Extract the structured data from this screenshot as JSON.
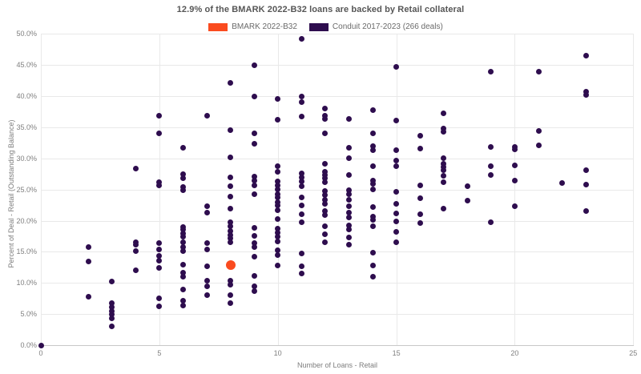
{
  "legend": {
    "items": [
      {
        "label": "BMARK 2022-B32",
        "color": "#fa4b1f"
      },
      {
        "label": "Conduit 2017-2023 (266 deals)",
        "color": "#2e0d4e"
      }
    ]
  },
  "chart_data": {
    "type": "scatter",
    "title": "12.9% of the BMARK 2022-B32 loans are backed by Retail collateral",
    "xlabel": "Number of Loans - Retail",
    "ylabel": "Percent of Deal - Retail (Outstanding Balance)",
    "xlim": [
      0,
      25
    ],
    "ylim": [
      0,
      50
    ],
    "x_ticks": [
      0,
      5,
      10,
      15,
      20,
      25
    ],
    "y_ticks": [
      0,
      5,
      10,
      15,
      20,
      25,
      30,
      35,
      40,
      45,
      50
    ],
    "y_tick_labels": [
      "0.0%",
      "5.0%",
      "10.0%",
      "15.0%",
      "20.0%",
      "25.0%",
      "30.0%",
      "35.0%",
      "40.0%",
      "45.0%",
      "50.0%"
    ],
    "grid": true,
    "legend_position": "top-center",
    "colors": {
      "grid": "#e9e9e9",
      "axis": "#c8c8c8",
      "title_text": "#565656",
      "tick_text": "#7f7f7f"
    },
    "series": [
      {
        "name": "Conduit 2017-2023 (266 deals)",
        "color": "#2e0d4e",
        "marker_size": 7,
        "points": [
          [
            0,
            0
          ],
          [
            2,
            15.8
          ],
          [
            2,
            13.5
          ],
          [
            2,
            7.8
          ],
          [
            3,
            10.2
          ],
          [
            3,
            6.7
          ],
          [
            3,
            6.1
          ],
          [
            3,
            5.5
          ],
          [
            3,
            4.9
          ],
          [
            3,
            4.3
          ],
          [
            3,
            3
          ],
          [
            4,
            28.4
          ],
          [
            4,
            16.6
          ],
          [
            4,
            16.1
          ],
          [
            4,
            15.1
          ],
          [
            4,
            12
          ],
          [
            5,
            36.9
          ],
          [
            5,
            34
          ],
          [
            5,
            26.2
          ],
          [
            5,
            25.7
          ],
          [
            5,
            16.4
          ],
          [
            5,
            15.4
          ],
          [
            5,
            14.4
          ],
          [
            5,
            13.6
          ],
          [
            5,
            12.4
          ],
          [
            5,
            7.5
          ],
          [
            5,
            6.2
          ],
          [
            6,
            31.7
          ],
          [
            6,
            27.5
          ],
          [
            6,
            26.8
          ],
          [
            6,
            25.4
          ],
          [
            6,
            24.9
          ],
          [
            6,
            19
          ],
          [
            6,
            18.6
          ],
          [
            6,
            17.9
          ],
          [
            6,
            17.4
          ],
          [
            6,
            16.5
          ],
          [
            6,
            15.8
          ],
          [
            6,
            15.1
          ],
          [
            6,
            13
          ],
          [
            6,
            11.6
          ],
          [
            6,
            11
          ],
          [
            6,
            9
          ],
          [
            6,
            7.1
          ],
          [
            6,
            6.4
          ],
          [
            7,
            36.9
          ],
          [
            7,
            22.3
          ],
          [
            7,
            21.3
          ],
          [
            7,
            16.4
          ],
          [
            7,
            15.4
          ],
          [
            7,
            12.7
          ],
          [
            7,
            10.3
          ],
          [
            7,
            9.5
          ],
          [
            7,
            8
          ],
          [
            8,
            42.2
          ],
          [
            8,
            34.6
          ],
          [
            8,
            30.2
          ],
          [
            8,
            27
          ],
          [
            8,
            25.6
          ],
          [
            8,
            23.9
          ],
          [
            8,
            21.9
          ],
          [
            8,
            19.7
          ],
          [
            8,
            19.1
          ],
          [
            8,
            18.4
          ],
          [
            8,
            17.7
          ],
          [
            8,
            17.2
          ],
          [
            8,
            16.5
          ],
          [
            8,
            10.3
          ],
          [
            8,
            9.7
          ],
          [
            8,
            8
          ],
          [
            8,
            6.7
          ],
          [
            9,
            45
          ],
          [
            9,
            39.9
          ],
          [
            9,
            34.1
          ],
          [
            9,
            32.4
          ],
          [
            9,
            27.1
          ],
          [
            9,
            26.4
          ],
          [
            9,
            25.7
          ],
          [
            9,
            24.2
          ],
          [
            9,
            18.9
          ],
          [
            9,
            17.6
          ],
          [
            9,
            16.4
          ],
          [
            9,
            15.8
          ],
          [
            9,
            14.2
          ],
          [
            9,
            11.2
          ],
          [
            9,
            9.4
          ],
          [
            9,
            8.7
          ],
          [
            10,
            39.6
          ],
          [
            10,
            36.2
          ],
          [
            10,
            28.7
          ],
          [
            10,
            27.8
          ],
          [
            10,
            26.3
          ],
          [
            10,
            25.7
          ],
          [
            10,
            25
          ],
          [
            10,
            24.3
          ],
          [
            10,
            23.7
          ],
          [
            10,
            23
          ],
          [
            10,
            22.4
          ],
          [
            10,
            21.7
          ],
          [
            10,
            20.3
          ],
          [
            10,
            18.7
          ],
          [
            10,
            18.1
          ],
          [
            10,
            17.4
          ],
          [
            10,
            16.7
          ],
          [
            10,
            15.2
          ],
          [
            10,
            14.5
          ],
          [
            10,
            12.8
          ],
          [
            11,
            49.2
          ],
          [
            11,
            39.9
          ],
          [
            11,
            39.1
          ],
          [
            11,
            36.8
          ],
          [
            11,
            27.6
          ],
          [
            11,
            27
          ],
          [
            11,
            26.3
          ],
          [
            11,
            25.6
          ],
          [
            11,
            23.7
          ],
          [
            11,
            22.4
          ],
          [
            11,
            21.1
          ],
          [
            11,
            19.8
          ],
          [
            11,
            14.7
          ],
          [
            11,
            12.7
          ],
          [
            11,
            11.5
          ],
          [
            12,
            38
          ],
          [
            12,
            36.9
          ],
          [
            12,
            36.4
          ],
          [
            12,
            34.1
          ],
          [
            12,
            29.2
          ],
          [
            12,
            27.9
          ],
          [
            12,
            27.3
          ],
          [
            12,
            26.8
          ],
          [
            12,
            26.2
          ],
          [
            12,
            24.8
          ],
          [
            12,
            24.1
          ],
          [
            12,
            23.4
          ],
          [
            12,
            22.7
          ],
          [
            12,
            21.6
          ],
          [
            12,
            20.9
          ],
          [
            12,
            19.1
          ],
          [
            12,
            17.8
          ],
          [
            12,
            16.5
          ],
          [
            13,
            36.4
          ],
          [
            13,
            31.7
          ],
          [
            13,
            30.1
          ],
          [
            13,
            27.4
          ],
          [
            13,
            24.9
          ],
          [
            13,
            24.2
          ],
          [
            13,
            23.3
          ],
          [
            13,
            22.3
          ],
          [
            13,
            21.3
          ],
          [
            13,
            20.5
          ],
          [
            13,
            19.3
          ],
          [
            13,
            18.6
          ],
          [
            13,
            17.3
          ],
          [
            13,
            16.1
          ],
          [
            14,
            37.8
          ],
          [
            14,
            34.1
          ],
          [
            14,
            32
          ],
          [
            14,
            31.4
          ],
          [
            14,
            28.7
          ],
          [
            14,
            26.5
          ],
          [
            14,
            25.9
          ],
          [
            14,
            25
          ],
          [
            14,
            22.2
          ],
          [
            14,
            20.7
          ],
          [
            14,
            20.1
          ],
          [
            14,
            19.1
          ],
          [
            14,
            14.9
          ],
          [
            14,
            12.8
          ],
          [
            14,
            11
          ],
          [
            15,
            44.7
          ],
          [
            15,
            36.1
          ],
          [
            15,
            31.3
          ],
          [
            15,
            29.6
          ],
          [
            15,
            28.8
          ],
          [
            15,
            24.6
          ],
          [
            15,
            22.7
          ],
          [
            15,
            21.2
          ],
          [
            15,
            19.9
          ],
          [
            15,
            18.2
          ],
          [
            15,
            16.6
          ],
          [
            16,
            33.6
          ],
          [
            16,
            31.6
          ],
          [
            16,
            25.7
          ],
          [
            16,
            23.6
          ],
          [
            16,
            21
          ],
          [
            16,
            19.6
          ],
          [
            17,
            37.3
          ],
          [
            17,
            34.8
          ],
          [
            17,
            34.3
          ],
          [
            17,
            30.1
          ],
          [
            17,
            29.1
          ],
          [
            17,
            28.6
          ],
          [
            17,
            28.1
          ],
          [
            17,
            27.2
          ],
          [
            17,
            26.2
          ],
          [
            17,
            22
          ],
          [
            18,
            25.5
          ],
          [
            18,
            23.2
          ],
          [
            19,
            43.9
          ],
          [
            19,
            31.9
          ],
          [
            19,
            28.7
          ],
          [
            19,
            27.4
          ],
          [
            19,
            19.8
          ],
          [
            20,
            31.9
          ],
          [
            20,
            31.5
          ],
          [
            20,
            28.9
          ],
          [
            20,
            26.5
          ],
          [
            20,
            22.3
          ],
          [
            21,
            44
          ],
          [
            21,
            34.4
          ],
          [
            21,
            32.1
          ],
          [
            22,
            26
          ],
          [
            23,
            46.5
          ],
          [
            23,
            40.7
          ],
          [
            23,
            40.2
          ],
          [
            23,
            28.1
          ],
          [
            23,
            25.8
          ],
          [
            23,
            21.6
          ]
        ]
      },
      {
        "name": "BMARK 2022-B32",
        "color": "#fa4b1f",
        "marker_size": 12,
        "points": [
          [
            8,
            12.9
          ]
        ]
      }
    ]
  }
}
